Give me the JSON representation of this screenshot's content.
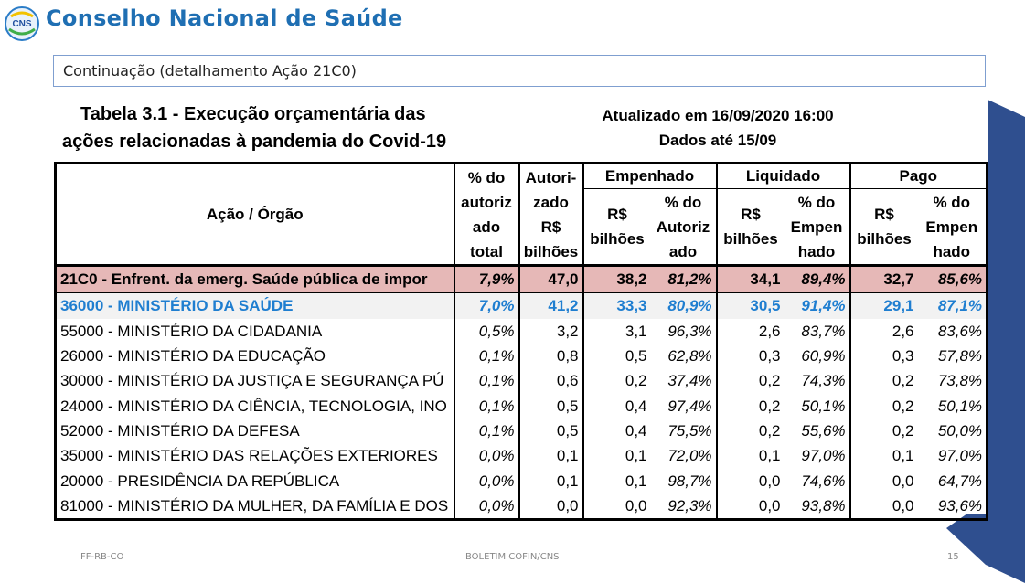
{
  "header": {
    "title": "Conselho Nacional de Saúde",
    "logo_text": "CNS"
  },
  "continuation": "Continuação (detalhamento Ação 21C0)",
  "table": {
    "title_line1": "Tabela 3.1 - Execução orçamentária das",
    "title_line2": "ações relacionadas à pandemia do Covid-19",
    "updated_line1": "Atualizado em 16/09/2020 16:00",
    "updated_line2": "Dados até 15/09",
    "headers": {
      "org": "Ação / Órgão",
      "pct_autoriz": [
        "% do",
        "autoriz",
        "ado",
        "total"
      ],
      "autorizado": [
        "Autori-",
        "zado",
        "R$",
        "bilhões"
      ],
      "empenhado": "Empenhado",
      "liquidado": "Liquidado",
      "pago": "Pago",
      "emp_rs": [
        "R$",
        "bilhões"
      ],
      "emp_pct": [
        "% do",
        "Autoriz",
        "ado"
      ],
      "liq_rs": [
        "R$",
        "bilhões"
      ],
      "liq_pct": [
        "% do",
        "Empen",
        "hado"
      ],
      "pago_rs": [
        "R$",
        "bilhões"
      ],
      "pago_pct": [
        "% do",
        "Empen",
        "hado"
      ]
    },
    "rows": [
      {
        "org": "21C0 - Enfrent. da emerg. Saúde pública de impor",
        "pct_aut": "7,9%",
        "aut": "47,0",
        "emp": "38,2",
        "emp_pct": "81,2%",
        "liq": "34,1",
        "liq_pct": "89,4%",
        "pago": "32,7",
        "pago_pct": "85,6%"
      },
      {
        "org": "36000 - MINISTÉRIO DA SAÚDE",
        "pct_aut": "7,0%",
        "aut": "41,2",
        "emp": "33,3",
        "emp_pct": "80,9%",
        "liq": "30,5",
        "liq_pct": "91,4%",
        "pago": "29,1",
        "pago_pct": "87,1%"
      },
      {
        "org": "55000 - MINISTÉRIO DA CIDADANIA",
        "pct_aut": "0,5%",
        "aut": "3,2",
        "emp": "3,1",
        "emp_pct": "96,3%",
        "liq": "2,6",
        "liq_pct": "83,7%",
        "pago": "2,6",
        "pago_pct": "83,6%"
      },
      {
        "org": "26000 - MINISTÉRIO DA EDUCAÇÃO",
        "pct_aut": "0,1%",
        "aut": "0,8",
        "emp": "0,5",
        "emp_pct": "62,8%",
        "liq": "0,3",
        "liq_pct": "60,9%",
        "pago": "0,3",
        "pago_pct": "57,8%"
      },
      {
        "org": "30000 - MINISTÉRIO DA JUSTIÇA E SEGURANÇA PÚ",
        "pct_aut": "0,1%",
        "aut": "0,6",
        "emp": "0,2",
        "emp_pct": "37,4%",
        "liq": "0,2",
        "liq_pct": "74,3%",
        "pago": "0,2",
        "pago_pct": "73,8%"
      },
      {
        "org": "24000 - MINISTÉRIO DA CIÊNCIA, TECNOLOGIA, INO",
        "pct_aut": "0,1%",
        "aut": "0,5",
        "emp": "0,4",
        "emp_pct": "97,4%",
        "liq": "0,2",
        "liq_pct": "50,1%",
        "pago": "0,2",
        "pago_pct": "50,1%"
      },
      {
        "org": "52000 - MINISTÉRIO DA DEFESA",
        "pct_aut": "0,1%",
        "aut": "0,5",
        "emp": "0,4",
        "emp_pct": "75,5%",
        "liq": "0,2",
        "liq_pct": "55,6%",
        "pago": "0,2",
        "pago_pct": "50,0%"
      },
      {
        "org": "35000 - MINISTÉRIO DAS RELAÇÕES EXTERIORES",
        "pct_aut": "0,0%",
        "aut": "0,1",
        "emp": "0,1",
        "emp_pct": "72,0%",
        "liq": "0,1",
        "liq_pct": "97,0%",
        "pago": "0,1",
        "pago_pct": "97,0%"
      },
      {
        "org": "20000 - PRESIDÊNCIA DA REPÚBLICA",
        "pct_aut": "0,0%",
        "aut": "0,1",
        "emp": "0,1",
        "emp_pct": "98,7%",
        "liq": "0,0",
        "liq_pct": "74,6%",
        "pago": "0,0",
        "pago_pct": "64,7%"
      },
      {
        "org": "81000 - MINISTÉRIO DA MULHER, DA FAMÍLIA E DOS",
        "pct_aut": "0,0%",
        "aut": "0,0",
        "emp": "0,0",
        "emp_pct": "92,3%",
        "liq": "0,0",
        "liq_pct": "93,8%",
        "pago": "0,0",
        "pago_pct": "93,6%"
      }
    ]
  },
  "footer": {
    "left": "FF-RB-CO",
    "center": "BOLETIM COFIN/CNS",
    "page": "15"
  },
  "colors": {
    "brand_blue": "#1f6fb3",
    "highlight_row": "#e6b8b7",
    "health_row_text": "#1f7ed0",
    "wedge": "#2f4f8f"
  }
}
